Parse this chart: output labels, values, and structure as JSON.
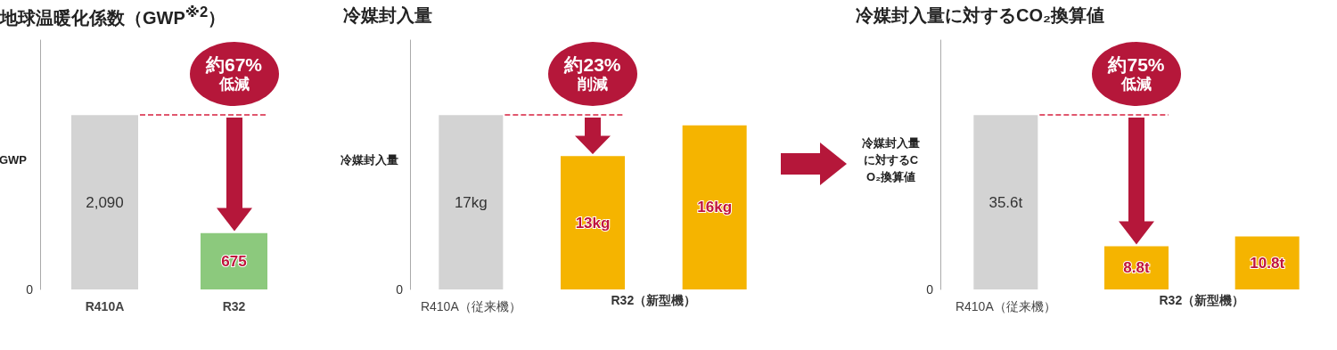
{
  "chart_data": [
    {
      "type": "bar",
      "title": "地球温暖化係数（GWP$^{※2}$）",
      "ylabel": "GWP",
      "categories": [
        "R410A",
        "R32"
      ],
      "values": [
        2090,
        675
      ],
      "colors": [
        "#d3d3d3",
        "#8cc97d"
      ],
      "value_labels": [
        "2,090",
        "675"
      ],
      "ref_lines": [
        {
          "axis": "y",
          "value": 2090,
          "color": "#d6203f",
          "line_style": "dashed"
        }
      ],
      "annotations": [
        "約67%\n低減",
        "0"
      ]
    },
    {
      "type": "bar",
      "title": "冷媒封入量",
      "ylabel": "冷媒封入量",
      "categories": [
        "R410A（従来機）",
        null,
        null
      ],
      "values": [
        17,
        13,
        16
      ],
      "colors": [
        "#d3d3d3",
        "#f5b400",
        "#f5b400"
      ],
      "value_labels": [
        "17kg",
        "13kg",
        "16kg"
      ],
      "ref_lines": [
        {
          "axis": "y",
          "value": 17,
          "color": "#d6203f",
          "line_style": "dashed"
        }
      ],
      "annotations": [
        "約23%\n削減",
        "0",
        "R32（新型機）"
      ]
    },
    {
      "type": "bar",
      "title": "冷媒封入量に対するCO₂換算値",
      "ylabel": "冷媒封入量に対するCO₂換算値",
      "categories": [
        "R410A（従来機）",
        null,
        null
      ],
      "values": [
        35.6,
        8.8,
        10.8
      ],
      "colors": [
        "#d3d3d3",
        "#f5b400",
        "#f5b400"
      ],
      "value_labels": [
        "35.6t",
        "8.8t",
        "10.8t"
      ],
      "ref_lines": [
        {
          "axis": "y",
          "value": 35.6,
          "color": "#d6203f",
          "line_style": "dashed"
        }
      ],
      "annotations": [
        "約75%\n低減",
        "0",
        "R32（新型機）"
      ]
    }
  ]
}
